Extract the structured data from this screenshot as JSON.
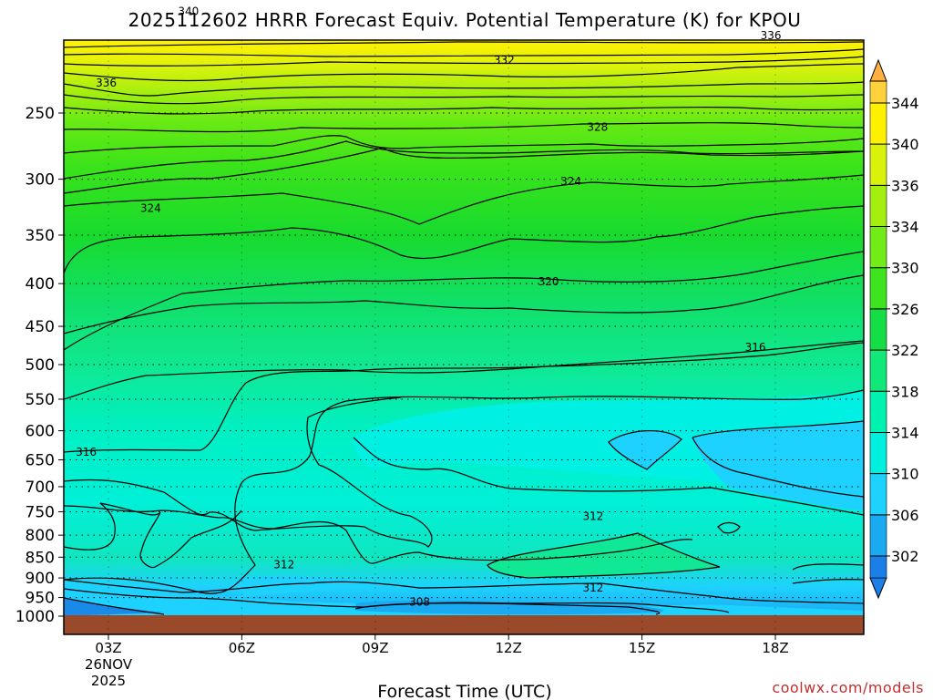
{
  "chart_data": {
    "type": "heatmap",
    "title": "2025112602 HRRR Forecast Equiv. Potential Temperature (K) for KPOU",
    "xlabel": "Forecast Time (UTC)",
    "ylabel": "",
    "x_ticks": [
      "03Z",
      "06Z",
      "09Z",
      "12Z",
      "15Z",
      "18Z"
    ],
    "x_date_label": [
      "26NOV",
      "2025"
    ],
    "x_range_hours": [
      2,
      20
    ],
    "y_axis": "pressure (hPa), inverted",
    "y_ticks": [
      250,
      300,
      350,
      400,
      450,
      500,
      550,
      600,
      650,
      700,
      750,
      800,
      850,
      900,
      950,
      1000
    ],
    "y_range": [
      175,
      1010
    ],
    "colorbar": {
      "ticks": [
        302,
        306,
        310,
        314,
        318,
        322,
        326,
        330,
        334,
        336,
        340,
        344
      ],
      "colors": [
        "#1a7fe6",
        "#19aaf2",
        "#1ed2ff",
        "#00f0e0",
        "#00f2b0",
        "#10e87a",
        "#14dd46",
        "#3ee41e",
        "#72ec16",
        "#a5ef10",
        "#d9f20c",
        "#fff000",
        "#ffd23c",
        "#ffb040"
      ]
    },
    "contour_labels": [
      {
        "value": "340",
        "hour": 4.8,
        "p": 189
      },
      {
        "value": "336",
        "hour": 2.95,
        "p": 230
      },
      {
        "value": "336",
        "hour": 17.9,
        "p": 202
      },
      {
        "value": "332",
        "hour": 11.9,
        "p": 216
      },
      {
        "value": "328",
        "hour": 14.0,
        "p": 260
      },
      {
        "value": "324",
        "hour": 3.95,
        "p": 325
      },
      {
        "value": "324",
        "hour": 13.4,
        "p": 302
      },
      {
        "value": "320",
        "hour": 12.9,
        "p": 398
      },
      {
        "value": "316",
        "hour": 17.55,
        "p": 477
      },
      {
        "value": "316",
        "hour": 2.5,
        "p": 636
      },
      {
        "value": "312",
        "hour": 6.95,
        "p": 868
      },
      {
        "value": "312",
        "hour": 13.9,
        "p": 760
      },
      {
        "value": "312",
        "hour": 13.9,
        "p": 925
      },
      {
        "value": "308",
        "hour": 10.0,
        "p": 962
      }
    ],
    "ground": "brown surface band below ~1000 hPa",
    "grid": "dotted horizontal lines at pressure ticks",
    "legend": "colorbar at right"
  },
  "credit": "coolwx.com/models",
  "colors": {
    "ground": "#9a4a2a",
    "contour": "#000000",
    "background": "#ffffff"
  }
}
